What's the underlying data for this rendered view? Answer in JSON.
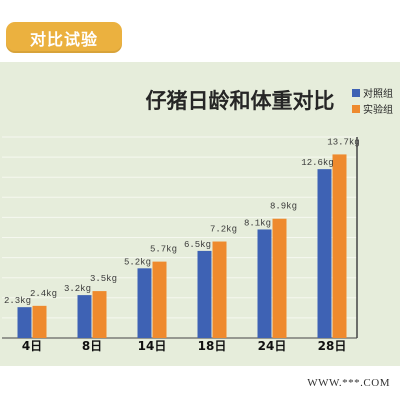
{
  "badge": {
    "label": "对比试验"
  },
  "theme": {
    "badge_color": "#ebb13f",
    "chart_background": "#e6eddb",
    "gridline_color": "#f6f8f0",
    "axis_color": "#444444"
  },
  "chart_data": {
    "type": "bar",
    "title": "仔猪日龄和体重对比",
    "xlabel": "",
    "ylabel": "",
    "categories": [
      "4日",
      "8日",
      "14日",
      "18日",
      "24日",
      "28日"
    ],
    "series": [
      {
        "name": "对照组",
        "color": "#3e62b4",
        "values": [
          2.3,
          3.2,
          5.2,
          6.5,
          8.1,
          12.6
        ],
        "labels": [
          "2.3kg",
          "3.2kg",
          "5.2kg",
          "6.5kg",
          "8.1kg",
          "12.6kg"
        ]
      },
      {
        "name": "实验组",
        "color": "#ee8a2e",
        "values": [
          2.4,
          3.5,
          5.7,
          7.2,
          8.9,
          13.7
        ],
        "labels": [
          "2.4kg",
          "3.5kg",
          "5.7kg",
          "7.2kg",
          "8.9kg",
          "13.7kg"
        ]
      }
    ],
    "ylim": [
      0,
      15
    ],
    "grid": true,
    "legend": "top-right"
  },
  "footer": {
    "watermark": "WWW.***.COM"
  }
}
